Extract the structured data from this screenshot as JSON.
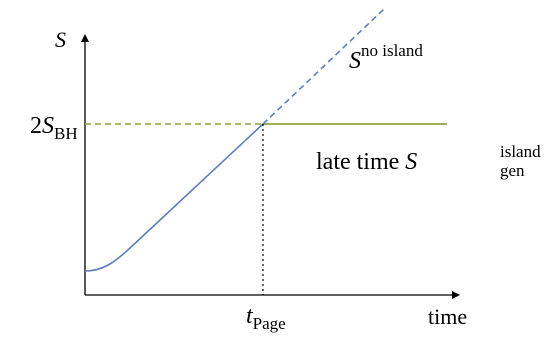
{
  "diagram": {
    "y_axis": {
      "symbol": "S"
    },
    "x_axis": {
      "label": "time"
    },
    "level_label": {
      "prefix": "2",
      "symbol": "S",
      "subscript": "BH"
    },
    "page_time": {
      "symbol": "t",
      "subscript": "Page"
    },
    "no_island_curve": {
      "symbol": "S",
      "superscript": "no island"
    },
    "island_curve": {
      "text": "late time ",
      "symbol": "S",
      "superscript": "island",
      "subscript": "gen"
    }
  },
  "colors": {
    "axes": "#000000",
    "entropy_curve": "#5b7fb8",
    "island_line": "#8ea43a",
    "page_marker": "#000000"
  }
}
